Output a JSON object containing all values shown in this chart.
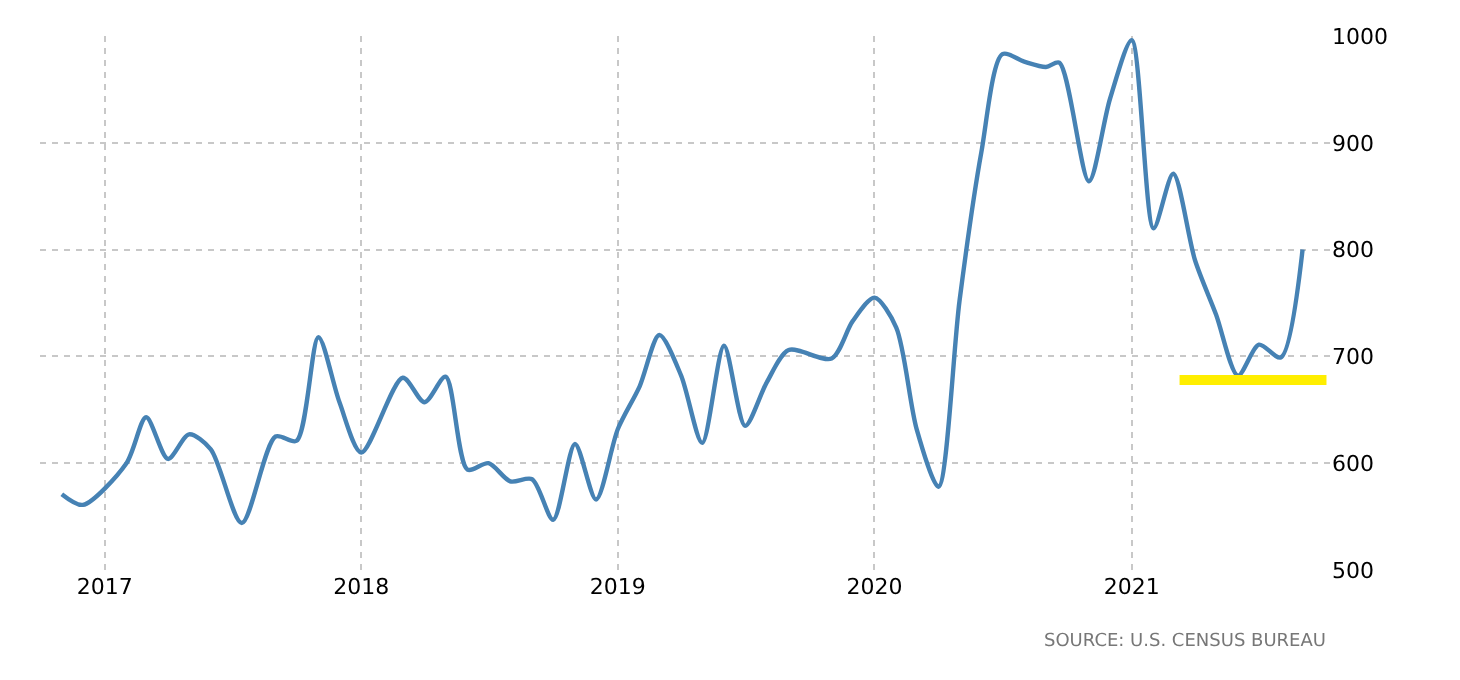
{
  "chart_data": {
    "type": "line",
    "xlim": [
      "2016-10-01",
      "2021-10-10"
    ],
    "xticks": [
      {
        "value": "2017-01-01",
        "label": "2017"
      },
      {
        "value": "2018-01-01",
        "label": "2018"
      },
      {
        "value": "2019-01-01",
        "label": "2019"
      },
      {
        "value": "2020-01-01",
        "label": "2020"
      },
      {
        "value": "2021-01-01",
        "label": "2021"
      }
    ],
    "ylim": [
      500,
      1000
    ],
    "yticks": [
      500,
      600,
      700,
      800,
      900,
      1000
    ],
    "grid": true,
    "marker": "none",
    "line_style": "solid",
    "annotations": [
      "SOURCE: U.S. CENSUS BUREAU"
    ],
    "series": [
      {
        "color": "#4682b4",
        "x": [
          "2016-11-01",
          "2016-12-01",
          "2017-02-01",
          "2017-03-01",
          "2017-04-01",
          "2017-05-01",
          "2017-06-01",
          "2017-07-15",
          "2017-09-01",
          "2017-10-01",
          "2017-11-01",
          "2017-12-01",
          "2018-01-01",
          "2018-03-01",
          "2018-04-01",
          "2018-05-01",
          "2018-06-01",
          "2018-07-01",
          "2018-08-01",
          "2018-09-01",
          "2018-10-01",
          "2018-11-01",
          "2018-12-01",
          "2019-01-01",
          "2019-02-01",
          "2019-03-01",
          "2019-04-01",
          "2019-05-01",
          "2019-06-01",
          "2019-07-01",
          "2019-08-01",
          "2019-09-01",
          "2019-11-01",
          "2019-12-01",
          "2020-01-01",
          "2020-02-01",
          "2020-03-01",
          "2020-04-01",
          "2020-05-01",
          "2020-06-01",
          "2020-07-01",
          "2020-08-01",
          "2020-09-01",
          "2020-09-20",
          "2020-11-01",
          "2020-12-01",
          "2021-01-01",
          "2021-02-01",
          "2021-03-01",
          "2021-04-01",
          "2021-05-01",
          "2021-06-01",
          "2021-07-01",
          "2021-08-01",
          "2021-09-01"
        ],
        "values": [
          571,
          561,
          600,
          643,
          604,
          627,
          613,
          544,
          625,
          621,
          718,
          657,
          610,
          680,
          657,
          681,
          594,
          600,
          583,
          585,
          547,
          618,
          566,
          632,
          672,
          720,
          682,
          619,
          710,
          635,
          676,
          706,
          698,
          733,
          755,
          727,
          632,
          578,
          752,
          891,
          983,
          976,
          971,
          975,
          864,
          941,
          996,
          820,
          871,
          790,
          739,
          682,
          711,
          699,
          800
        ]
      },
      {
        "color": "#ffee00",
        "x": [
          "2021-03-10",
          "2021-10-05"
        ],
        "values": [
          678,
          678
        ]
      }
    ]
  }
}
